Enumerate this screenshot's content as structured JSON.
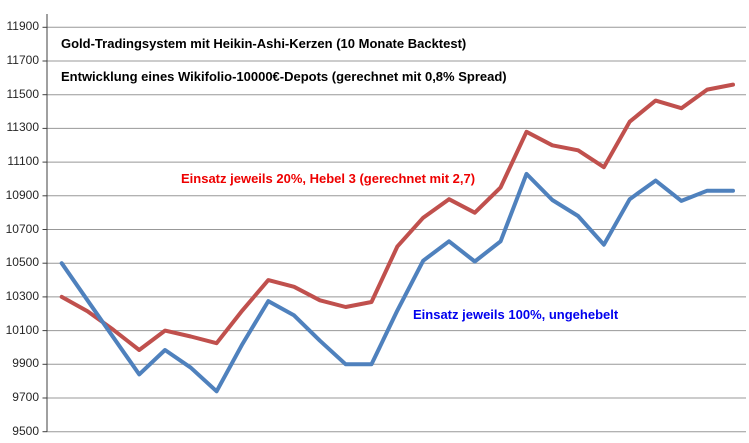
{
  "chart": {
    "title_line1": "Gold-Tradingsystem mit Heikin-Ashi-Kerzen (10 Monate Backtest)",
    "title_line2": "Entwicklung eines Wikifolio-10000€-Depots (gerechnet mit 0,8% Spread)",
    "red_label": "Einsatz jeweils 20%, Hebel 3 (gerechnet mit 2,7)",
    "blue_label": "Einsatz jeweils 100%, ungehebelt",
    "colors": {
      "red_line": "#C0504D",
      "blue_line": "#4F81BD",
      "red_label_text": "#EE0000",
      "blue_label_text": "#0000EE",
      "gridline": "#989898",
      "axis": "#404040",
      "background": "#FFFFFF"
    }
  },
  "chart_data": {
    "type": "line",
    "title": "Gold-Tradingsystem mit Heikin-Ashi-Kerzen (10 Monate Backtest)",
    "subtitle": "Entwicklung eines Wikifolio-10000€-Depots (gerechnet mit 0,8% Spread)",
    "xlabel": "",
    "ylabel": "",
    "x_tick_labels": null,
    "n_points": 27,
    "ylim": [
      9500,
      11900
    ],
    "y_tick_step": 200,
    "y_ticks": [
      9500,
      9700,
      9900,
      10100,
      10300,
      10500,
      10700,
      10900,
      11100,
      11300,
      11500,
      11700,
      11900
    ],
    "grid": true,
    "legend_position": "inline-annotations",
    "series": [
      {
        "name": "Einsatz jeweils 20%, Hebel 3 (gerechnet mit 2,7)",
        "color": "#C0504D",
        "values": [
          10300,
          10215,
          10105,
          9985,
          10100,
          10065,
          10025,
          10220,
          10400,
          10360,
          10280,
          10240,
          10270,
          10600,
          10770,
          10880,
          10800,
          10950,
          11280,
          11200,
          11170,
          11070,
          11340,
          11465,
          11420,
          11530,
          11560
        ]
      },
      {
        "name": "Einsatz jeweils 100%, ungehebelt",
        "color": "#4F81BD",
        "values": [
          10500,
          10280,
          10060,
          9840,
          9985,
          9880,
          9740,
          10020,
          10275,
          10190,
          10040,
          9900,
          9900,
          10220,
          10515,
          10630,
          10510,
          10630,
          11030,
          10875,
          10780,
          10610,
          10880,
          10990,
          10870,
          10930,
          10930
        ]
      }
    ]
  }
}
